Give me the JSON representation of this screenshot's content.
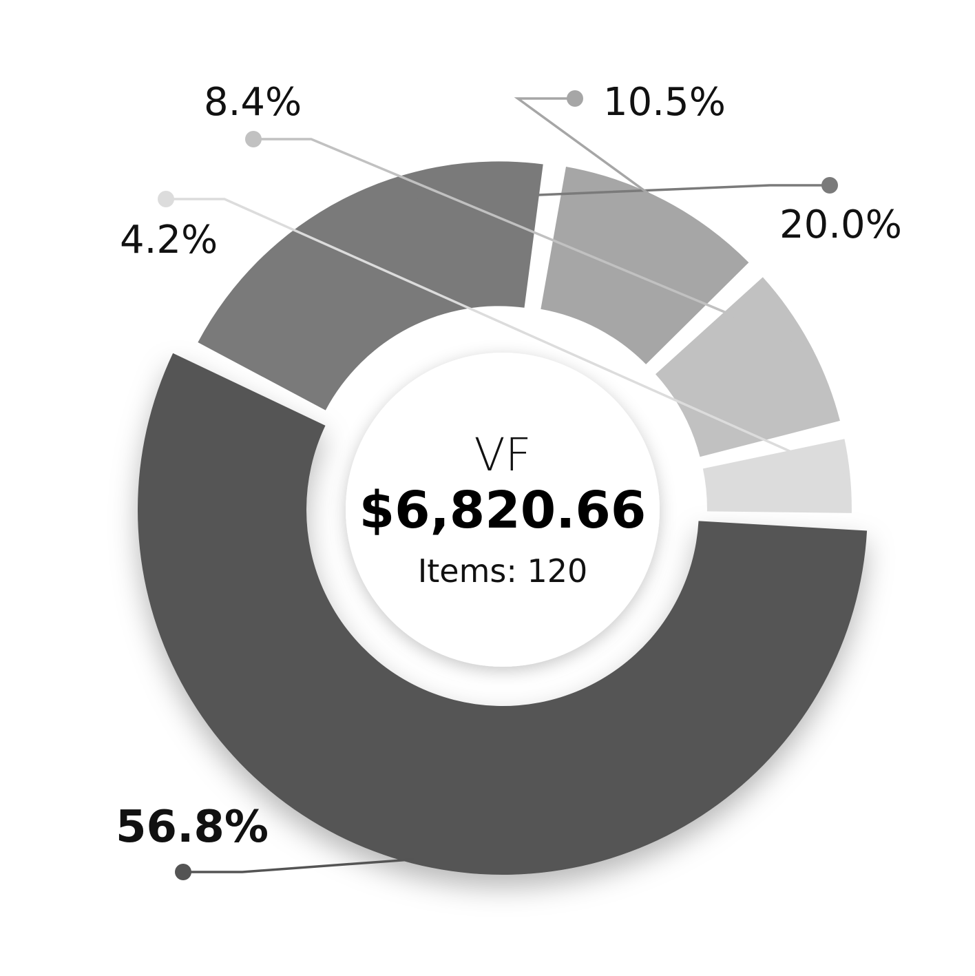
{
  "chart_data": {
    "type": "pie",
    "variant": "donut",
    "center": {
      "title": "VF",
      "total": "$6,820.66",
      "items_text": "Items: 120"
    },
    "slices": [
      {
        "label": "56.8%",
        "value": 56.8,
        "color": "#545454",
        "emphasis": true
      },
      {
        "label": "20.0%",
        "value": 20.0,
        "color": "#7a7a7a"
      },
      {
        "label": "10.5%",
        "value": 10.5,
        "color": "#a6a6a6"
      },
      {
        "label": "8.4%",
        "value": 8.4,
        "color": "#c1c1c1"
      },
      {
        "label": "4.2%",
        "value": 4.2,
        "color": "#dcdcdc"
      }
    ],
    "legend": "none"
  }
}
